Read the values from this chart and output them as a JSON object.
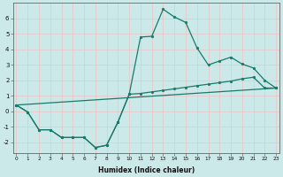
{
  "xlabel": "Humidex (Indice chaleur)",
  "bg_color": "#cce9e9",
  "line_color": "#1a7a6a",
  "grid_color": "#e8c8c8",
  "line1_y": [
    0.4,
    -0.05,
    -1.2,
    -1.2,
    -1.7,
    -1.7,
    -1.7,
    -2.35,
    -2.2,
    -0.7,
    1.1,
    4.8,
    4.85,
    6.6,
    6.1,
    5.75,
    4.1,
    3.0,
    3.25,
    3.5,
    3.05,
    2.8,
    2.0,
    1.5
  ],
  "line2_y": [
    0.4,
    -0.05,
    -1.2,
    -1.2,
    -1.7,
    -1.7,
    -1.7,
    -2.35,
    -2.2,
    -0.7,
    1.1,
    1.15,
    1.25,
    1.35,
    1.45,
    1.55,
    1.65,
    1.75,
    1.85,
    1.95,
    2.1,
    2.2,
    1.5,
    1.5
  ],
  "line3_x": [
    0,
    23
  ],
  "line3_y": [
    0.4,
    1.5
  ],
  "xlim": [
    0,
    23
  ],
  "ylim": [
    -2.7,
    7.0
  ],
  "yticks": [
    -2,
    -1,
    0,
    1,
    2,
    3,
    4,
    5,
    6
  ],
  "xticks": [
    0,
    1,
    2,
    3,
    4,
    5,
    6,
    7,
    8,
    9,
    10,
    11,
    12,
    13,
    14,
    15,
    16,
    17,
    18,
    19,
    20,
    21,
    22,
    23
  ]
}
